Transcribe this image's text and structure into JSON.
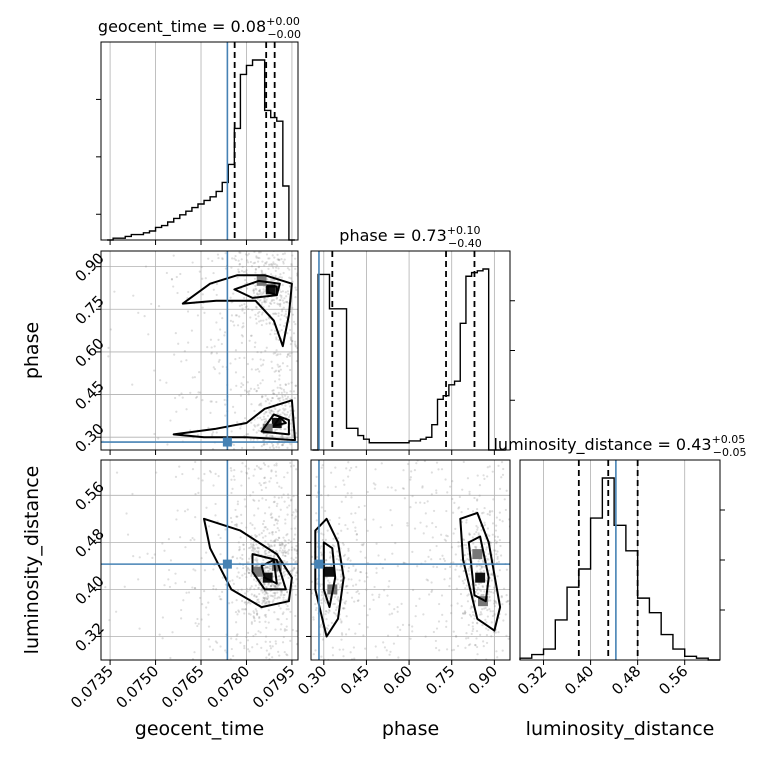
{
  "chart_data": {
    "type": "corner",
    "parameters": [
      "geocent_time",
      "phase",
      "luminosity_distance"
    ],
    "axis_labels": [
      "geocent_time",
      "phase",
      "luminosity_distance"
    ],
    "titles": [
      {
        "param": "geocent_time",
        "text": "geocent_time = 0.08",
        "plus": "+0.00",
        "minus": "−0.00"
      },
      {
        "param": "phase",
        "text": "phase = 0.73",
        "plus": "+0.10",
        "minus": "−0.40"
      },
      {
        "param": "luminosity_distance",
        "text": "luminosity_distance = 0.43",
        "plus": "+0.05",
        "minus": "−0.05"
      }
    ],
    "ranges": {
      "geocent_time": [
        0.0732,
        0.0797
      ],
      "phase": [
        0.255,
        0.955
      ],
      "luminosity_distance": [
        0.28,
        0.62
      ]
    },
    "ticks": {
      "geocent_time": [
        "0.0735",
        "0.0750",
        "0.0765",
        "0.0780",
        "0.0795"
      ],
      "geocent_time_values": [
        0.0735,
        0.075,
        0.0765,
        0.078,
        0.0795
      ],
      "phase": [
        "0.30",
        "0.45",
        "0.60",
        "0.75",
        "0.90"
      ],
      "phase_values": [
        0.3,
        0.45,
        0.6,
        0.75,
        0.9
      ],
      "luminosity_distance": [
        "0.32",
        "0.40",
        "0.48",
        "0.56"
      ],
      "luminosity_distance_values": [
        0.32,
        0.4,
        0.48,
        0.56
      ]
    },
    "truths": {
      "geocent_time": 0.07737,
      "phase": 0.283,
      "luminosity_distance": 0.443
    },
    "quantiles": {
      "geocent_time": [
        0.07761,
        0.07865,
        0.07893
      ],
      "phase": [
        0.33,
        0.73,
        0.83
      ],
      "luminosity_distance": [
        0.38,
        0.43,
        0.48
      ]
    },
    "histograms": {
      "geocent_time": {
        "bins": [
          0.0734,
          0.0736,
          0.0738,
          0.074,
          0.0742,
          0.0744,
          0.0746,
          0.0748,
          0.075,
          0.0752,
          0.0754,
          0.0756,
          0.0758,
          0.076,
          0.0762,
          0.0764,
          0.0766,
          0.0768,
          0.077,
          0.0772,
          0.0774,
          0.0776,
          0.0778,
          0.078,
          0.0782,
          0.0784,
          0.0786,
          0.0788,
          0.079,
          0.0792,
          0.0794,
          0.0796
        ],
        "counts": [
          0,
          1,
          1,
          2,
          3,
          3,
          4,
          5,
          7,
          8,
          10,
          12,
          14,
          16,
          18,
          20,
          22,
          24,
          27,
          32,
          42,
          62,
          92,
          97,
          100,
          100,
          72,
          68,
          66,
          30,
          0
        ]
      },
      "phase": {
        "bins": [
          0.26,
          0.28,
          0.3,
          0.32,
          0.34,
          0.36,
          0.38,
          0.4,
          0.42,
          0.44,
          0.46,
          0.48,
          0.5,
          0.52,
          0.54,
          0.56,
          0.58,
          0.6,
          0.62,
          0.64,
          0.66,
          0.68,
          0.7,
          0.72,
          0.74,
          0.76,
          0.78,
          0.8,
          0.82,
          0.84,
          0.86,
          0.88,
          0.9,
          0.92,
          0.94
        ],
        "counts": [
          0,
          97,
          97,
          78,
          78,
          78,
          12,
          12,
          8,
          6,
          4,
          4,
          4,
          4,
          4,
          4,
          4,
          5,
          5,
          6,
          7,
          14,
          28,
          30,
          36,
          38,
          70,
          96,
          98,
          99,
          100,
          0,
          0,
          0
        ]
      },
      "luminosity_distance": {
        "bins": [
          0.28,
          0.3,
          0.32,
          0.34,
          0.36,
          0.38,
          0.4,
          0.42,
          0.44,
          0.46,
          0.48,
          0.5,
          0.52,
          0.54,
          0.56,
          0.58,
          0.6,
          0.62
        ],
        "counts": [
          1,
          3,
          6,
          22,
          40,
          50,
          78,
          100,
          74,
          60,
          34,
          26,
          14,
          6,
          2,
          1,
          0
        ]
      }
    },
    "contours": {
      "phase_vs_geocent_time": [
        [
          [
            0.0759,
            0.77
          ],
          [
            0.0768,
            0.84
          ],
          [
            0.0777,
            0.87
          ],
          [
            0.0786,
            0.87
          ],
          [
            0.0795,
            0.84
          ],
          [
            0.0794,
            0.73
          ],
          [
            0.0792,
            0.62
          ],
          [
            0.0789,
            0.71
          ],
          [
            0.0783,
            0.78
          ],
          [
            0.077,
            0.78
          ],
          [
            0.0759,
            0.77
          ]
        ],
        [
          [
            0.0776,
            0.82
          ],
          [
            0.0784,
            0.85
          ],
          [
            0.0791,
            0.84
          ],
          [
            0.079,
            0.8
          ],
          [
            0.0782,
            0.79
          ],
          [
            0.0776,
            0.82
          ]
        ],
        [
          [
            0.0787,
            0.83
          ],
          [
            0.079,
            0.83
          ],
          [
            0.079,
            0.8
          ],
          [
            0.0787,
            0.81
          ],
          [
            0.0787,
            0.83
          ]
        ],
        [
          [
            0.0756,
            0.31
          ],
          [
            0.077,
            0.33
          ],
          [
            0.078,
            0.35
          ],
          [
            0.0786,
            0.4
          ],
          [
            0.0795,
            0.43
          ],
          [
            0.0796,
            0.29
          ],
          [
            0.078,
            0.3
          ],
          [
            0.0766,
            0.3
          ],
          [
            0.0756,
            0.31
          ]
        ],
        [
          [
            0.0785,
            0.32
          ],
          [
            0.0789,
            0.38
          ],
          [
            0.0794,
            0.36
          ],
          [
            0.0794,
            0.31
          ],
          [
            0.0785,
            0.32
          ]
        ],
        [
          [
            0.0789,
            0.34
          ],
          [
            0.0791,
            0.37
          ],
          [
            0.0793,
            0.35
          ],
          [
            0.0789,
            0.34
          ]
        ]
      ],
      "luminosity_distance_vs_geocent_time": [
        [
          [
            0.0766,
            0.52
          ],
          [
            0.0778,
            0.5
          ],
          [
            0.079,
            0.46
          ],
          [
            0.0795,
            0.42
          ],
          [
            0.0794,
            0.38
          ],
          [
            0.0785,
            0.37
          ],
          [
            0.0775,
            0.4
          ],
          [
            0.0768,
            0.47
          ],
          [
            0.0766,
            0.52
          ]
        ],
        [
          [
            0.0782,
            0.46
          ],
          [
            0.079,
            0.45
          ],
          [
            0.0793,
            0.4
          ],
          [
            0.0786,
            0.4
          ],
          [
            0.0782,
            0.43
          ],
          [
            0.0782,
            0.46
          ]
        ],
        [
          [
            0.0785,
            0.44
          ],
          [
            0.0789,
            0.45
          ],
          [
            0.079,
            0.41
          ],
          [
            0.0786,
            0.42
          ],
          [
            0.0785,
            0.44
          ]
        ]
      ],
      "luminosity_distance_vs_phase": [
        [
          [
            0.27,
            0.5
          ],
          [
            0.31,
            0.52
          ],
          [
            0.35,
            0.48
          ],
          [
            0.37,
            0.42
          ],
          [
            0.35,
            0.35
          ],
          [
            0.31,
            0.32
          ],
          [
            0.27,
            0.4
          ],
          [
            0.27,
            0.5
          ]
        ],
        [
          [
            0.3,
            0.48
          ],
          [
            0.33,
            0.47
          ],
          [
            0.34,
            0.42
          ],
          [
            0.32,
            0.37
          ],
          [
            0.3,
            0.4
          ],
          [
            0.3,
            0.48
          ]
        ],
        [
          [
            0.78,
            0.52
          ],
          [
            0.84,
            0.53
          ],
          [
            0.88,
            0.48
          ],
          [
            0.92,
            0.37
          ],
          [
            0.9,
            0.33
          ],
          [
            0.84,
            0.35
          ],
          [
            0.79,
            0.45
          ],
          [
            0.78,
            0.52
          ]
        ],
        [
          [
            0.81,
            0.48
          ],
          [
            0.85,
            0.49
          ],
          [
            0.88,
            0.42
          ],
          [
            0.87,
            0.38
          ],
          [
            0.83,
            0.39
          ],
          [
            0.81,
            0.48
          ]
        ]
      ]
    },
    "density_cells": {
      "phase_vs_geocent_time": [
        [
          0.0788,
          0.82,
          2
        ],
        [
          0.0785,
          0.85,
          1
        ],
        [
          0.079,
          0.35,
          2
        ],
        [
          0.0787,
          0.33,
          1
        ]
      ],
      "luminosity_distance_vs_geocent_time": [
        [
          0.0787,
          0.42,
          2
        ],
        [
          0.079,
          0.44,
          1
        ],
        [
          0.0784,
          0.43,
          1
        ]
      ],
      "luminosity_distance_vs_phase": [
        [
          0.32,
          0.43,
          2
        ],
        [
          0.33,
          0.4,
          1
        ],
        [
          0.85,
          0.42,
          2
        ],
        [
          0.86,
          0.38,
          1
        ],
        [
          0.84,
          0.46,
          1
        ]
      ]
    },
    "scatter_color": "#888888",
    "truth_color": "#4682b4",
    "line_color": "#000000",
    "grid": true
  }
}
